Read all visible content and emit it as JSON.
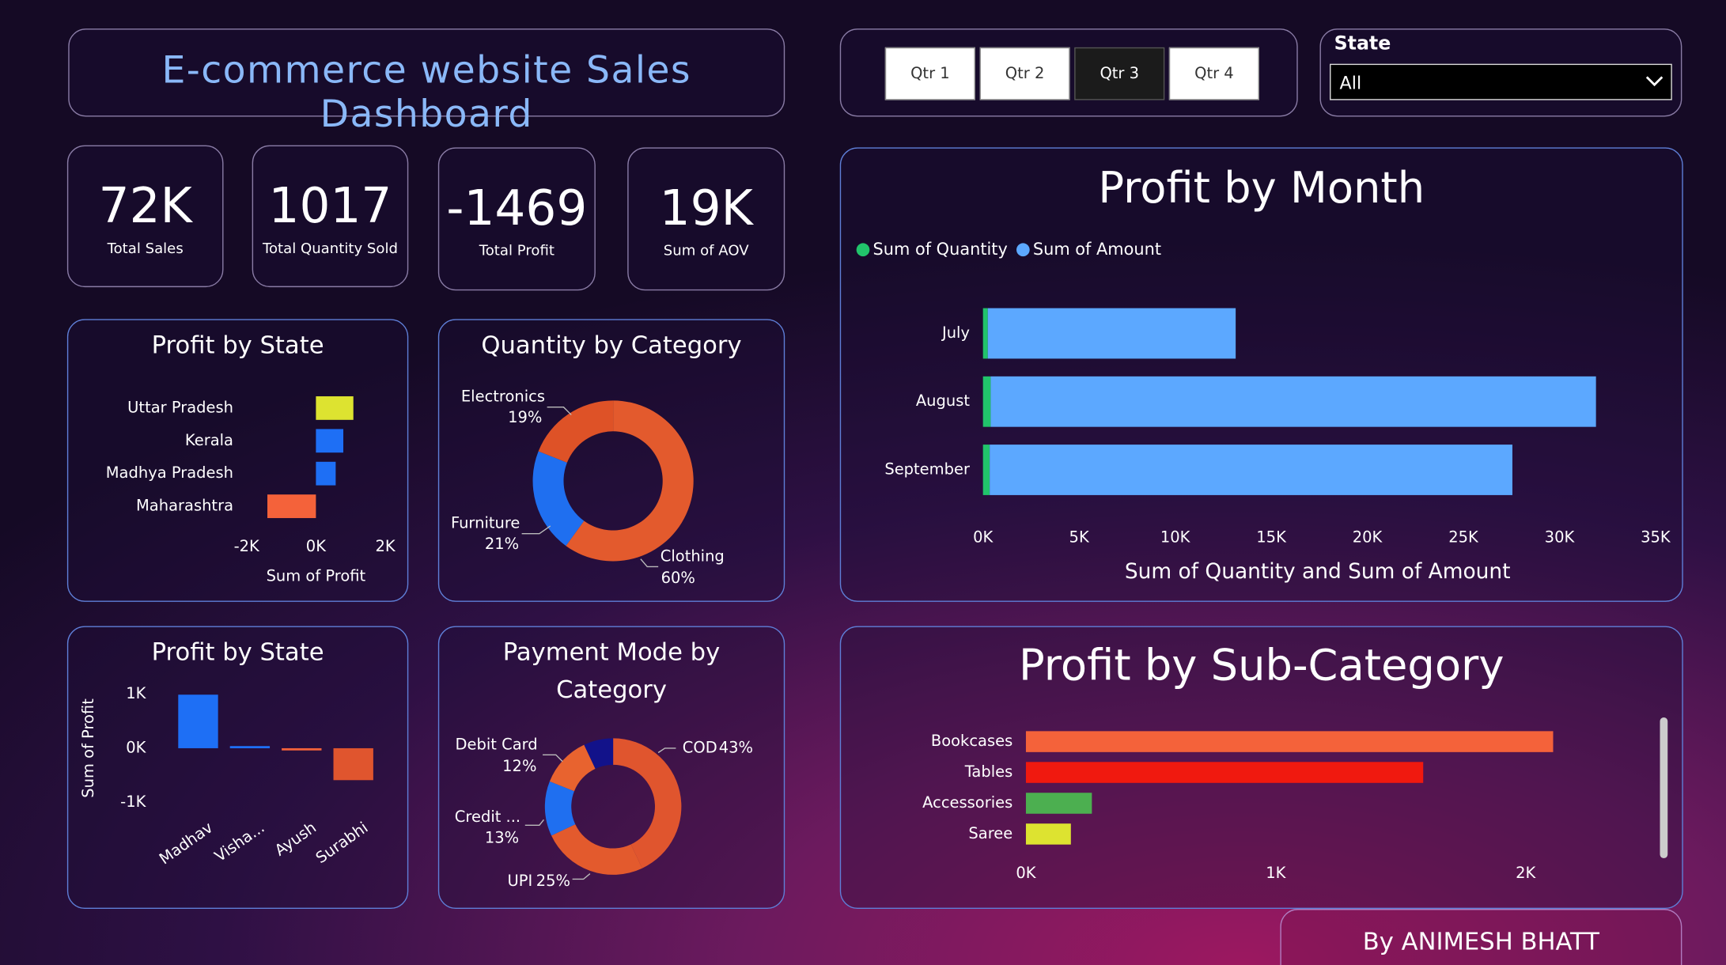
{
  "header": {
    "title": "E-commerce website Sales Dashboard"
  },
  "filters": {
    "quarters": [
      {
        "label": "Qtr 1",
        "selected": false
      },
      {
        "label": "Qtr 2",
        "selected": false
      },
      {
        "label": "Qtr 3",
        "selected": true
      },
      {
        "label": "Qtr 4",
        "selected": false
      }
    ],
    "state_label": "State",
    "state_value": "All"
  },
  "kpis": [
    {
      "value": "72K",
      "label": "Total Sales"
    },
    {
      "value": "1017",
      "label": "Total Quantity Sold"
    },
    {
      "value": "-1469",
      "label": "Total Profit"
    },
    {
      "value": "19K",
      "label": "Sum of AOV"
    }
  ],
  "footer": {
    "text": "By ANIMESH BHATT"
  },
  "chart_data": [
    {
      "type": "bar",
      "orientation": "horizontal",
      "title": "Profit by State",
      "xlabel": "Sum of Profit",
      "categories": [
        "Uttar Pradesh",
        "Kerala",
        "Madhya Pradesh",
        "Maharashtra"
      ],
      "values": [
        1080,
        790,
        570,
        -1400
      ],
      "colors": [
        "#dde330",
        "#1e6ff5",
        "#1e6ff5",
        "#f4623a"
      ],
      "xlim": [
        -2000,
        2000
      ],
      "xticks": [
        {
          "value": -2000,
          "label": "-2K"
        },
        {
          "value": 0,
          "label": "0K"
        },
        {
          "value": 2000,
          "label": "2K"
        }
      ]
    },
    {
      "type": "donut",
      "title": "Quantity by Category",
      "categories": [
        "Clothing",
        "Furniture",
        "Electronics"
      ],
      "values": [
        60,
        21,
        19
      ],
      "value_labels": [
        "60%",
        "21%",
        "19%"
      ],
      "colors": [
        "#e35a2d",
        "#1f6ff0",
        "#de5227"
      ]
    },
    {
      "type": "bar",
      "orientation": "vertical",
      "title": "Profit by State",
      "ylabel": "Sum of Profit",
      "categories": [
        "Madhav",
        "Visha...",
        "Ayush",
        "Surabhi"
      ],
      "values": [
        990,
        40,
        -20,
        -590
      ],
      "colors": [
        "#1e6ff5",
        "#1e6ff5",
        "#f4623a",
        "#e0552e"
      ],
      "ylim": [
        -1200,
        1200
      ],
      "yticks": [
        {
          "value": 1000,
          "label": "1K"
        },
        {
          "value": 0,
          "label": "0K"
        },
        {
          "value": -1000,
          "label": "-1K"
        }
      ]
    },
    {
      "type": "donut",
      "title": "Payment Mode by Category",
      "categories": [
        "COD",
        "UPI",
        "Credit ...",
        "Debit Card",
        null
      ],
      "values": [
        43,
        25,
        13,
        12,
        7
      ],
      "value_labels": [
        "43%",
        "25%",
        "13%",
        "12%",
        null
      ],
      "colors": [
        "#e0552e",
        "#e35a2d",
        "#1f6ff0",
        "#e8632f",
        "#12128a"
      ]
    },
    {
      "type": "stacked_bar",
      "orientation": "horizontal",
      "title": "Profit by Month",
      "xlabel": "Sum of Quantity and Sum of Amount",
      "categories": [
        "July",
        "August",
        "September"
      ],
      "series": [
        {
          "name": "Sum of Quantity",
          "color": "#21c46b",
          "values": [
            250,
            400,
            350
          ]
        },
        {
          "name": "Sum of Amount",
          "color": "#5ca8ff",
          "values": [
            12900,
            31500,
            27200
          ]
        }
      ],
      "legend": "top-left",
      "xlim": [
        0,
        35000
      ],
      "xticks": [
        {
          "value": 0,
          "label": "0K"
        },
        {
          "value": 5000,
          "label": "5K"
        },
        {
          "value": 10000,
          "label": "10K"
        },
        {
          "value": 15000,
          "label": "15K"
        },
        {
          "value": 20000,
          "label": "20K"
        },
        {
          "value": 25000,
          "label": "25K"
        },
        {
          "value": 30000,
          "label": "30K"
        },
        {
          "value": 35000,
          "label": "35K"
        }
      ]
    },
    {
      "type": "bar",
      "orientation": "horizontal",
      "title": "Profit by Sub-Category",
      "categories": [
        "Bookcases",
        "Tables",
        "Accessories",
        "Saree"
      ],
      "values": [
        2110,
        1590,
        264,
        180
      ],
      "colors": [
        "#f4623a",
        "#f0190f",
        "#4caf50",
        "#dde330"
      ],
      "xlim": [
        0,
        2300
      ],
      "xticks": [
        {
          "value": 0,
          "label": "0K"
        },
        {
          "value": 1000,
          "label": "1K"
        },
        {
          "value": 2000,
          "label": "2K"
        }
      ]
    }
  ]
}
